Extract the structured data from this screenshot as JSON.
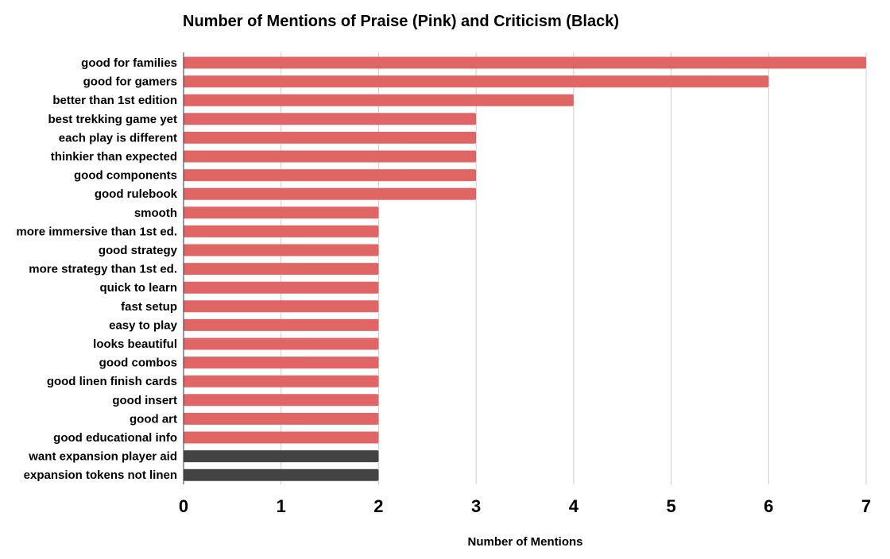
{
  "chart_data": {
    "type": "bar",
    "orientation": "horizontal",
    "title": "Number of Mentions of Praise (Pink) and Criticism (Black)",
    "xlabel": "Number of Mentions",
    "ylabel": "",
    "xlim": [
      0,
      7
    ],
    "x_ticks": [
      "0",
      "1",
      "2",
      "3",
      "4",
      "5",
      "6",
      "7"
    ],
    "grid": "vertical",
    "legend": "none",
    "colors": {
      "praise": "#e06666",
      "criticism": "#434343"
    },
    "categories": [
      "good for families",
      "good for gamers",
      "better than 1st edition",
      "best trekking game yet",
      "each play is different",
      "thinkier than expected",
      "good components",
      "good rulebook",
      "smooth",
      "more immersive than 1st ed.",
      "good strategy",
      "more strategy than 1st ed.",
      "quick to learn",
      "fast setup",
      "easy to play",
      "looks beautiful",
      "good combos",
      "good linen finish cards",
      "good insert",
      "good art",
      "good educational info",
      "want expansion player aid",
      "expansion tokens not linen"
    ],
    "values": [
      7,
      6,
      4,
      3,
      3,
      3,
      3,
      3,
      2,
      2,
      2,
      2,
      2,
      2,
      2,
      2,
      2,
      2,
      2,
      2,
      2,
      2,
      2
    ],
    "kinds": [
      "praise",
      "praise",
      "praise",
      "praise",
      "praise",
      "praise",
      "praise",
      "praise",
      "praise",
      "praise",
      "praise",
      "praise",
      "praise",
      "praise",
      "praise",
      "praise",
      "praise",
      "praise",
      "praise",
      "praise",
      "praise",
      "criticism",
      "criticism"
    ]
  }
}
